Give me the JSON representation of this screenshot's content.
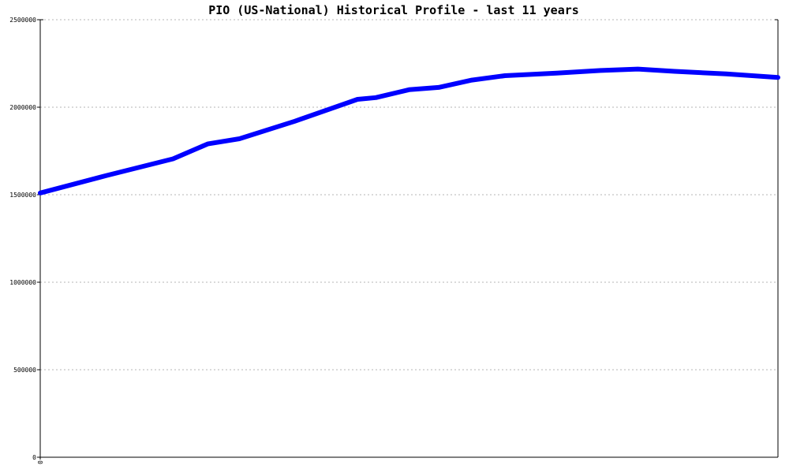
{
  "chart_data": {
    "type": "line",
    "title": "PIO (US-National) Historical Profile - last 11 years",
    "xlabel": "",
    "ylabel": "",
    "x_tick_labels": [
      "0"
    ],
    "y_ticks": [
      0,
      500000,
      1000000,
      1500000,
      2000000,
      2500000
    ],
    "y_tick_labels": [
      "0",
      "500000",
      "1000000",
      "1500000",
      "2000000",
      "2500000"
    ],
    "ylim": [
      0,
      2500000
    ],
    "xlim": [
      0,
      1
    ],
    "grid": true,
    "legend": "none",
    "series": [
      {
        "color": "#0000ff",
        "x": [
          0.0,
          0.09,
          0.18,
          0.227,
          0.27,
          0.345,
          0.43,
          0.455,
          0.5,
          0.54,
          0.585,
          0.63,
          0.7,
          0.76,
          0.81,
          0.86,
          0.93,
          1.0
        ],
        "values": [
          1510000,
          1610000,
          1705000,
          1790000,
          1820000,
          1920000,
          2045000,
          2055000,
          2100000,
          2113000,
          2155000,
          2180000,
          2195000,
          2210000,
          2218000,
          2205000,
          2190000,
          2170000
        ]
      }
    ]
  }
}
